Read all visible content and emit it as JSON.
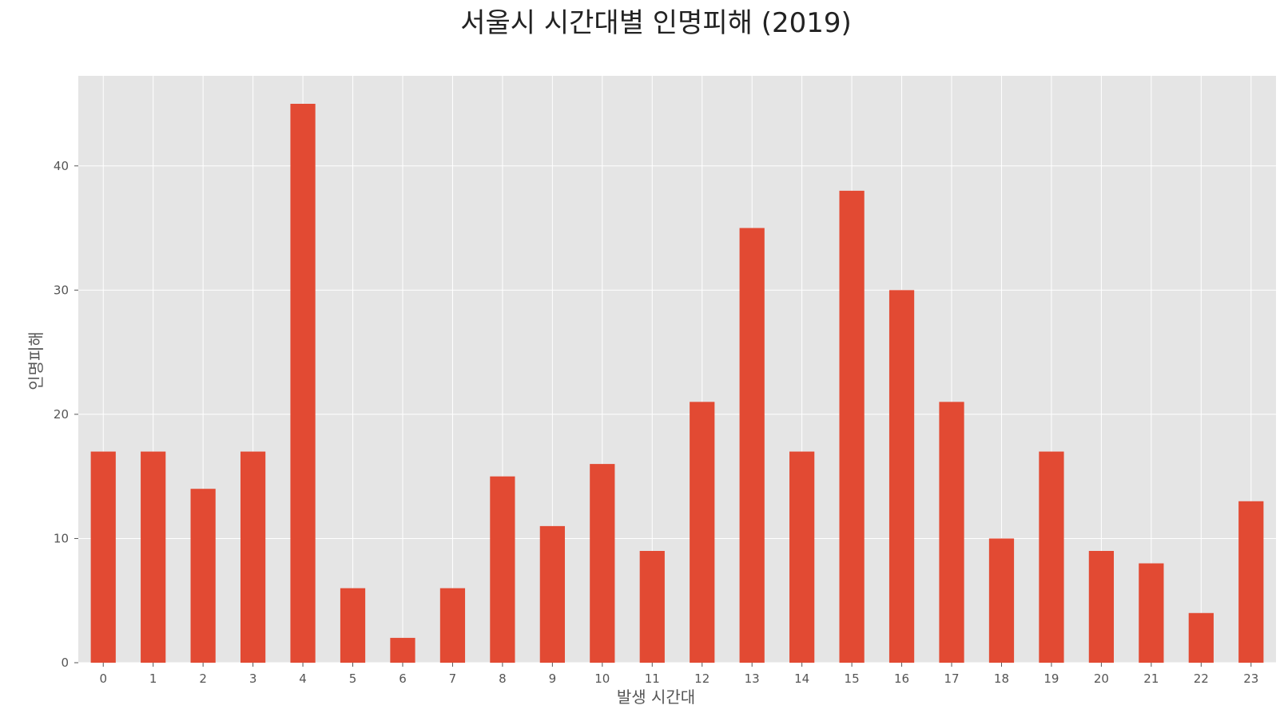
{
  "chart_data": {
    "type": "bar",
    "title": "서울시 시간대별 인명피해 (2019)",
    "xlabel": "발생 시간대",
    "ylabel": "인명피해",
    "categories": [
      "0",
      "1",
      "2",
      "3",
      "4",
      "5",
      "6",
      "7",
      "8",
      "9",
      "10",
      "11",
      "12",
      "13",
      "14",
      "15",
      "16",
      "17",
      "18",
      "19",
      "20",
      "21",
      "22",
      "23"
    ],
    "values": [
      17,
      17,
      14,
      17,
      45,
      6,
      2,
      6,
      15,
      11,
      16,
      9,
      21,
      35,
      17,
      38,
      30,
      21,
      10,
      17,
      9,
      8,
      4,
      13
    ],
    "ylim": [
      0,
      47.25
    ],
    "yticks": [
      0,
      10,
      20,
      30,
      40
    ],
    "grid": true,
    "colors": {
      "bar": "#E24A33",
      "plot_bg": "#E5E5E5",
      "grid": "#FFFFFF"
    }
  }
}
